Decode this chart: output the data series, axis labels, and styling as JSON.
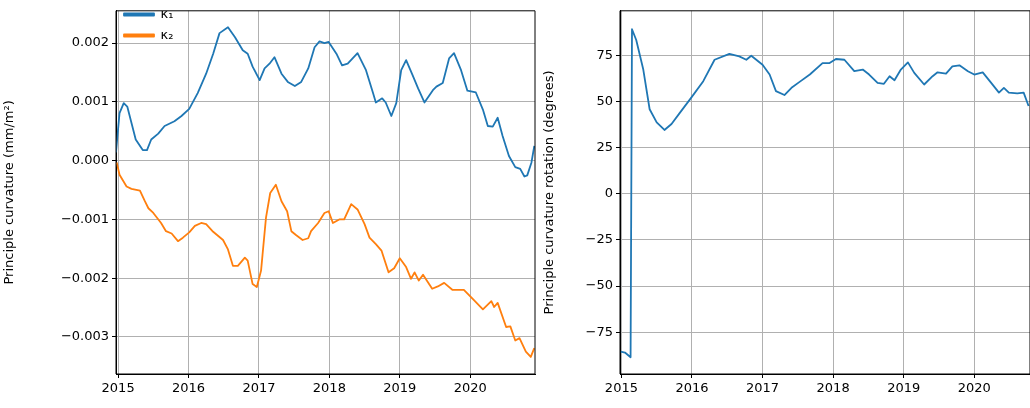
{
  "chart_data": [
    {
      "type": "line",
      "ylabel": "Principle curvature (mm/m²)",
      "xlim": [
        2014.97,
        2020.92
      ],
      "xticks": [
        2015,
        2016,
        2017,
        2018,
        2019,
        2020
      ],
      "ylim": [
        -0.00363,
        0.00255
      ],
      "yticks": [
        {
          "value": -0.003,
          "label": "−0.003"
        },
        {
          "value": -0.002,
          "label": "−0.002"
        },
        {
          "value": -0.001,
          "label": "−0.001"
        },
        {
          "value": 0,
          "label": "0.000"
        },
        0.001,
        0.002
      ],
      "grid": true,
      "legend": "top left",
      "series": [
        {
          "name": "κ₁",
          "color": "#1f77b4",
          "x": [
            2014.97,
            2015.02,
            2015.08,
            2015.13,
            2015.19,
            2015.25,
            2015.35,
            2015.41,
            2015.47,
            2015.57,
            2015.66,
            2015.8,
            2015.9,
            2016.01,
            2016.13,
            2016.25,
            2016.35,
            2016.44,
            2016.56,
            2016.66,
            2016.77,
            2016.84,
            2016.91,
            2017.01,
            2017.08,
            2017.15,
            2017.22,
            2017.32,
            2017.41,
            2017.51,
            2017.6,
            2017.7,
            2017.79,
            2017.86,
            2017.93,
            2017.99,
            2018.1,
            2018.18,
            2018.26,
            2018.4,
            2018.52,
            2018.62,
            2018.66,
            2018.75,
            2018.8,
            2018.88,
            2018.95,
            2019.02,
            2019.09,
            2019.18,
            2019.26,
            2019.35,
            2019.47,
            2019.52,
            2019.61,
            2019.7,
            2019.77,
            2019.87,
            2019.96,
            2020.08,
            2020.18,
            2020.25,
            2020.32,
            2020.39,
            2020.46,
            2020.55,
            2020.64,
            2020.71,
            2020.77,
            2020.81,
            2020.87,
            2020.91
          ],
          "values": [
            0.00014,
            0.00081,
            0.00098,
            0.00092,
            0.00064,
            0.00036,
            0.00018,
            0.00018,
            0.00036,
            0.00046,
            0.00059,
            0.00067,
            0.00076,
            0.00088,
            0.00115,
            0.00148,
            0.00182,
            0.00217,
            0.00227,
            0.0021,
            0.00188,
            0.00182,
            0.0016,
            0.00137,
            0.00157,
            0.00165,
            0.00176,
            0.00148,
            0.00134,
            0.00127,
            0.00134,
            0.00157,
            0.00193,
            0.00203,
            0.002,
            0.00202,
            0.00182,
            0.00162,
            0.00165,
            0.00183,
            0.00154,
            0.00115,
            0.00099,
            0.00106,
            0.00099,
            0.00076,
            0.00098,
            0.00154,
            0.00171,
            0.00146,
            0.00123,
            0.00099,
            0.0012,
            0.00126,
            0.00132,
            0.00174,
            0.00183,
            0.00154,
            0.00119,
            0.00116,
            0.00087,
            0.00059,
            0.00058,
            0.00073,
            0.00042,
            8e-05,
            -0.00011,
            -0.00014,
            -0.00027,
            -0.00025,
            -3e-05,
            0.00025
          ]
        },
        {
          "name": "κ₂",
          "color": "#ff7f0e",
          "x": [
            2014.98,
            2015.02,
            2015.12,
            2015.19,
            2015.31,
            2015.38,
            2015.43,
            2015.5,
            2015.61,
            2015.68,
            2015.76,
            2015.85,
            2015.92,
            2016.01,
            2016.09,
            2016.18,
            2016.25,
            2016.35,
            2016.49,
            2016.56,
            2016.63,
            2016.7,
            2016.8,
            2016.84,
            2016.91,
            2016.97,
            2017.03,
            2017.1,
            2017.16,
            2017.24,
            2017.32,
            2017.4,
            2017.46,
            2017.53,
            2017.62,
            2017.7,
            2017.74,
            2017.84,
            2017.93,
            2017.99,
            2018.05,
            2018.14,
            2018.21,
            2018.31,
            2018.4,
            2018.5,
            2018.57,
            2018.66,
            2018.74,
            2018.84,
            2018.92,
            2019.0,
            2019.09,
            2019.16,
            2019.21,
            2019.27,
            2019.33,
            2019.46,
            2019.54,
            2019.63,
            2019.75,
            2019.91,
            2020.06,
            2020.18,
            2020.3,
            2020.34,
            2020.39,
            2020.51,
            2020.57,
            2020.64,
            2020.7,
            2020.79,
            2020.86,
            2020.91
          ],
          "values": [
            -3e-05,
            -0.00024,
            -0.00044,
            -0.00048,
            -0.00051,
            -0.00069,
            -0.00081,
            -0.00089,
            -0.00106,
            -0.0012,
            -0.00124,
            -0.00137,
            -0.00131,
            -0.00122,
            -0.00111,
            -0.00106,
            -0.00108,
            -0.00121,
            -0.00135,
            -0.00151,
            -0.00179,
            -0.00179,
            -0.00165,
            -0.0017,
            -0.0021,
            -0.00215,
            -0.00187,
            -0.00097,
            -0.00055,
            -0.00041,
            -0.00069,
            -0.00086,
            -0.0012,
            -0.00127,
            -0.00135,
            -0.00132,
            -0.0012,
            -0.00106,
            -0.00089,
            -0.00086,
            -0.00106,
            -0.001,
            -0.001,
            -0.00074,
            -0.00083,
            -0.00108,
            -0.00131,
            -0.00142,
            -0.00153,
            -0.0019,
            -0.00183,
            -0.00166,
            -0.00181,
            -0.00201,
            -0.0019,
            -0.00204,
            -0.00194,
            -0.00218,
            -0.00214,
            -0.00208,
            -0.0022,
            -0.0022,
            -0.00238,
            -0.00253,
            -0.00239,
            -0.00249,
            -0.00242,
            -0.00283,
            -0.00282,
            -0.00306,
            -0.00302,
            -0.00325,
            -0.00334,
            -0.00319
          ]
        }
      ]
    },
    {
      "type": "line",
      "ylabel": "Principle curvature rotation (degrees)",
      "xlim": [
        2014.98,
        2020.79
      ],
      "xticks": [
        2015,
        2016,
        2017,
        2018,
        2019,
        2020
      ],
      "ylim": [
        -97.6,
        99
      ],
      "yticks": [
        {
          "value": -75,
          "label": "−75"
        },
        {
          "value": -50,
          "label": "−50"
        },
        {
          "value": -25,
          "label": "−25"
        },
        0,
        25,
        50,
        75
      ],
      "grid": true,
      "series": [
        {
          "color": "#1f77b4",
          "x": [
            2014.99,
            2015.05,
            2015.13,
            2015.15,
            2015.21,
            2015.31,
            2015.4,
            2015.5,
            2015.61,
            2015.71,
            2015.83,
            2015.99,
            2016.16,
            2016.32,
            2016.53,
            2016.67,
            2016.77,
            2016.84,
            2017.0,
            2017.1,
            2017.19,
            2017.31,
            2017.41,
            2017.52,
            2017.67,
            2017.85,
            2017.95,
            2018.04,
            2018.16,
            2018.3,
            2018.42,
            2018.51,
            2018.63,
            2018.72,
            2018.8,
            2018.87,
            2018.96,
            2019.06,
            2019.15,
            2019.29,
            2019.41,
            2019.48,
            2019.6,
            2019.69,
            2019.79,
            2019.91,
            2020.0,
            2020.12,
            2020.24,
            2020.35,
            2020.42,
            2020.49,
            2020.61,
            2020.7,
            2020.77
          ],
          "values": [
            -85.5,
            -86,
            -88.5,
            89,
            83.2,
            67.2,
            45.7,
            38.6,
            34.5,
            37.7,
            43.9,
            52,
            60.9,
            72.5,
            75.7,
            74.3,
            72.5,
            74.7,
            69.8,
            64.5,
            55.5,
            53.4,
            57.3,
            60.4,
            64.5,
            70.7,
            70.7,
            72.9,
            72.5,
            66.3,
            67.2,
            64.5,
            60,
            59.5,
            63.6,
            61.4,
            67.2,
            71.1,
            65.4,
            59.1,
            63.6,
            65.7,
            65,
            68.9,
            69.5,
            66.3,
            64.5,
            65.7,
            60,
            54.7,
            57.3,
            54.7,
            54.3,
            54.7,
            47.5
          ]
        }
      ]
    }
  ]
}
